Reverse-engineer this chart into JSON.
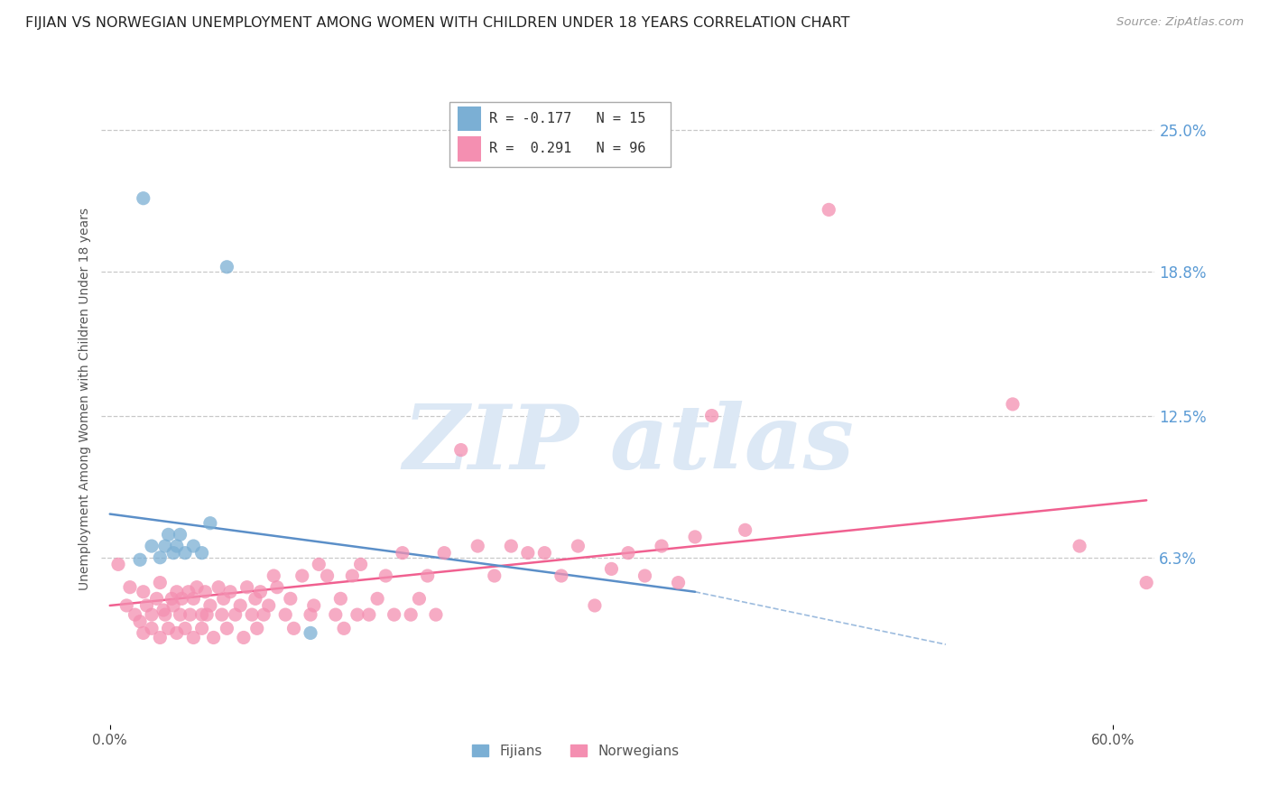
{
  "title": "FIJIAN VS NORWEGIAN UNEMPLOYMENT AMONG WOMEN WITH CHILDREN UNDER 18 YEARS CORRELATION CHART",
  "source": "Source: ZipAtlas.com",
  "ylabel": "Unemployment Among Women with Children Under 18 years",
  "fijian_color": "#7bafd4",
  "norwegian_color": "#f48fb1",
  "fijian_line_color": "#5b8fc8",
  "norwegian_line_color": "#f06090",
  "background_color": "#ffffff",
  "grid_color": "#c8c8c8",
  "right_tick_color": "#5b9bd5",
  "ylim_low": -0.01,
  "ylim_high": 0.275,
  "xlim_low": -0.005,
  "xlim_high": 0.625,
  "ytick_vals": [
    0.063,
    0.125,
    0.188,
    0.25
  ],
  "ytick_labels": [
    "6.3%",
    "12.5%",
    "18.8%",
    "25.0%"
  ],
  "xtick_vals": [
    0.0,
    0.6
  ],
  "xtick_labels": [
    "0.0%",
    "60.0%"
  ],
  "nor_trend_x0": 0.0,
  "nor_trend_y0": 0.042,
  "nor_trend_x1": 0.62,
  "nor_trend_y1": 0.088,
  "fij_trend_x0": 0.0,
  "fij_trend_y0": 0.082,
  "fij_trend_x1": 0.35,
  "fij_trend_y1": 0.048,
  "fij_x": [
    0.018,
    0.025,
    0.03,
    0.033,
    0.035,
    0.038,
    0.04,
    0.042,
    0.045,
    0.05,
    0.055,
    0.06,
    0.07,
    0.02,
    0.12
  ],
  "fij_y": [
    0.062,
    0.068,
    0.063,
    0.068,
    0.073,
    0.065,
    0.068,
    0.073,
    0.065,
    0.068,
    0.065,
    0.078,
    0.19,
    0.22,
    0.03
  ],
  "nor_x": [
    0.005,
    0.01,
    0.012,
    0.015,
    0.018,
    0.02,
    0.02,
    0.022,
    0.025,
    0.025,
    0.028,
    0.03,
    0.03,
    0.032,
    0.033,
    0.035,
    0.037,
    0.038,
    0.04,
    0.04,
    0.042,
    0.043,
    0.045,
    0.047,
    0.048,
    0.05,
    0.05,
    0.052,
    0.055,
    0.055,
    0.057,
    0.058,
    0.06,
    0.062,
    0.065,
    0.067,
    0.068,
    0.07,
    0.072,
    0.075,
    0.078,
    0.08,
    0.082,
    0.085,
    0.087,
    0.088,
    0.09,
    0.092,
    0.095,
    0.098,
    0.1,
    0.105,
    0.108,
    0.11,
    0.115,
    0.12,
    0.122,
    0.125,
    0.13,
    0.135,
    0.138,
    0.14,
    0.145,
    0.148,
    0.15,
    0.155,
    0.16,
    0.165,
    0.17,
    0.175,
    0.18,
    0.185,
    0.19,
    0.195,
    0.2,
    0.21,
    0.22,
    0.23,
    0.24,
    0.25,
    0.26,
    0.27,
    0.28,
    0.29,
    0.3,
    0.31,
    0.32,
    0.33,
    0.34,
    0.35,
    0.36,
    0.38,
    0.43,
    0.54,
    0.58,
    0.62
  ],
  "nor_y": [
    0.06,
    0.042,
    0.05,
    0.038,
    0.035,
    0.048,
    0.03,
    0.042,
    0.038,
    0.032,
    0.045,
    0.052,
    0.028,
    0.04,
    0.038,
    0.032,
    0.045,
    0.042,
    0.048,
    0.03,
    0.038,
    0.045,
    0.032,
    0.048,
    0.038,
    0.045,
    0.028,
    0.05,
    0.038,
    0.032,
    0.048,
    0.038,
    0.042,
    0.028,
    0.05,
    0.038,
    0.045,
    0.032,
    0.048,
    0.038,
    0.042,
    0.028,
    0.05,
    0.038,
    0.045,
    0.032,
    0.048,
    0.038,
    0.042,
    0.055,
    0.05,
    0.038,
    0.045,
    0.032,
    0.055,
    0.038,
    0.042,
    0.06,
    0.055,
    0.038,
    0.045,
    0.032,
    0.055,
    0.038,
    0.06,
    0.038,
    0.045,
    0.055,
    0.038,
    0.065,
    0.038,
    0.045,
    0.055,
    0.038,
    0.065,
    0.11,
    0.068,
    0.055,
    0.068,
    0.065,
    0.065,
    0.055,
    0.068,
    0.042,
    0.058,
    0.065,
    0.055,
    0.068,
    0.052,
    0.072,
    0.125,
    0.075,
    0.215,
    0.13,
    0.068,
    0.052
  ]
}
